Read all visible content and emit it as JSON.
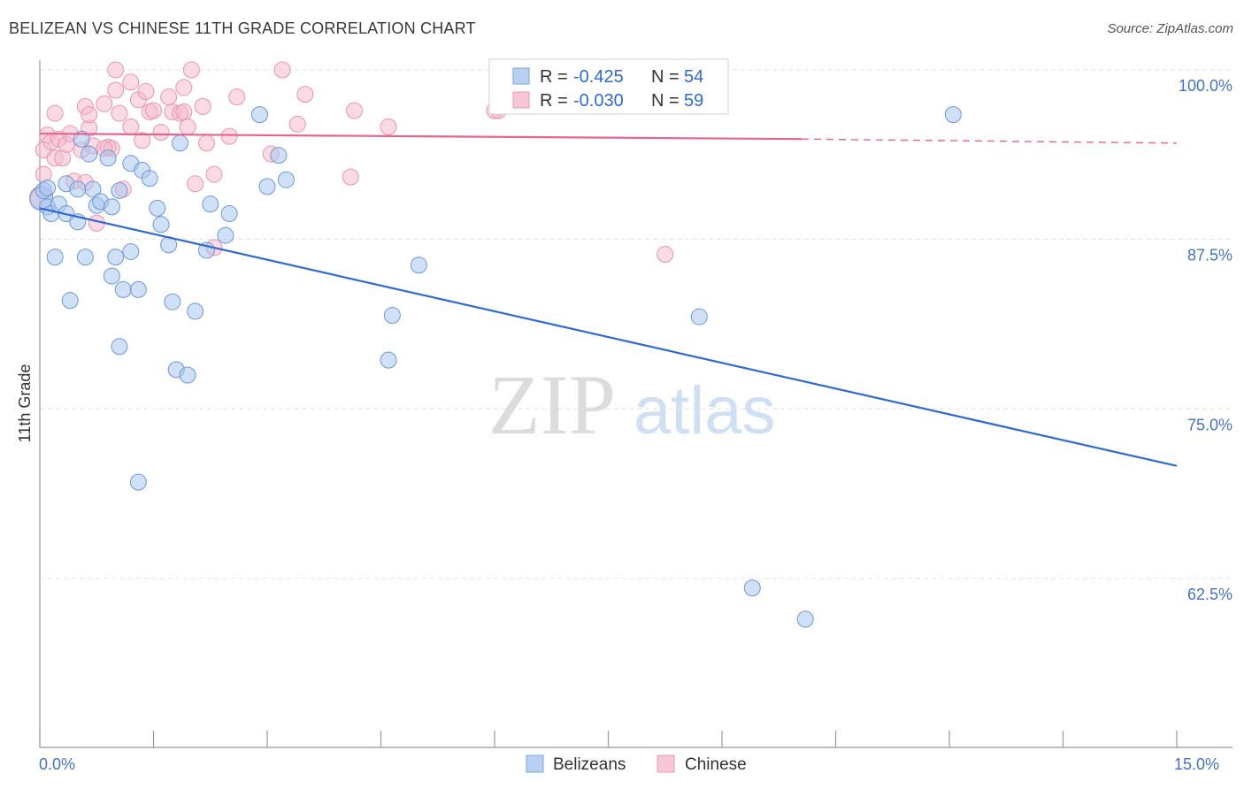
{
  "header": {
    "title": "BELIZEAN VS CHINESE 11TH GRADE CORRELATION CHART",
    "source": "Source: ZipAtlas.com"
  },
  "watermark": {
    "part1": "ZIP",
    "part2": "atlas"
  },
  "legend_top": {
    "rows": [
      {
        "r_label": "R =",
        "r_value": "-0.425",
        "n_label": "N =",
        "n_value": "54",
        "color": "#a9c6ee"
      },
      {
        "r_label": "R =",
        "r_value": "-0.030",
        "n_label": "N =",
        "n_value": "59",
        "color": "#f5b8c9"
      }
    ]
  },
  "legend_bottom": {
    "items": [
      {
        "label": "Belizeans",
        "color": "#a9c6ee"
      },
      {
        "label": "Chinese",
        "color": "#f5b8c9"
      }
    ]
  },
  "chart_data": {
    "type": "scatter",
    "ylabel": "11th Grade",
    "xlim": [
      0,
      15
    ],
    "ylim": [
      50,
      100
    ],
    "x_tick_labels": [
      "0.0%",
      "15.0%"
    ],
    "y_ticks": [
      100,
      87.5,
      75,
      62.5
    ],
    "y_tick_labels": [
      "100.0%",
      "87.5%",
      "75.0%",
      "62.5%"
    ],
    "grid": true,
    "colors": {
      "belizeans": "#2f6ad0",
      "chinese": "#e8638e",
      "belizeans_fill": "#a9c6ee",
      "chinese_fill": "#f5b8c9"
    },
    "series": [
      {
        "name": "Belizeans",
        "trend": {
          "x": [
            0,
            15
          ],
          "y": [
            89.8,
            70.8
          ],
          "dashed_from": null
        },
        "points": [
          [
            0.02,
            90.5
          ],
          [
            0.05,
            91.1
          ],
          [
            0.1,
            91.3
          ],
          [
            0.1,
            89.9
          ],
          [
            0.15,
            89.4
          ],
          [
            0.25,
            90.1
          ],
          [
            0.35,
            91.6
          ],
          [
            0.35,
            89.4
          ],
          [
            0.5,
            91.2
          ],
          [
            0.5,
            88.8
          ],
          [
            0.55,
            94.9
          ],
          [
            0.65,
            93.8
          ],
          [
            0.7,
            91.2
          ],
          [
            0.75,
            90.0
          ],
          [
            0.8,
            90.3
          ],
          [
            0.9,
            93.5
          ],
          [
            0.95,
            89.9
          ],
          [
            1.05,
            91.1
          ],
          [
            1.2,
            93.1
          ],
          [
            1.35,
            92.6
          ],
          [
            1.45,
            92.0
          ],
          [
            1.55,
            89.8
          ],
          [
            1.6,
            88.6
          ],
          [
            1.7,
            87.1
          ],
          [
            1.85,
            94.6
          ],
          [
            2.25,
            90.1
          ],
          [
            2.5,
            89.4
          ],
          [
            2.45,
            87.8
          ],
          [
            2.2,
            86.7
          ],
          [
            2.9,
            96.7
          ],
          [
            3.0,
            91.4
          ],
          [
            3.15,
            93.7
          ],
          [
            3.25,
            91.9
          ],
          [
            0.2,
            86.2
          ],
          [
            0.6,
            86.2
          ],
          [
            1.0,
            86.2
          ],
          [
            1.2,
            86.6
          ],
          [
            0.4,
            83.0
          ],
          [
            0.95,
            84.8
          ],
          [
            1.1,
            83.8
          ],
          [
            1.3,
            83.8
          ],
          [
            1.75,
            82.9
          ],
          [
            2.05,
            82.2
          ],
          [
            1.05,
            79.6
          ],
          [
            1.8,
            77.9
          ],
          [
            1.95,
            77.5
          ],
          [
            5.0,
            85.6
          ],
          [
            4.65,
            81.9
          ],
          [
            4.6,
            78.6
          ],
          [
            8.7,
            81.8
          ],
          [
            12.05,
            96.7
          ],
          [
            9.4,
            61.8
          ],
          [
            10.1,
            59.5
          ],
          [
            1.3,
            69.6
          ]
        ]
      },
      {
        "name": "Chinese",
        "trend": {
          "x": [
            0,
            10.05,
            15
          ],
          "y": [
            95.3,
            94.9,
            94.6
          ],
          "dashed_from": 10.05
        },
        "points": [
          [
            0.02,
            90.6
          ],
          [
            0.05,
            94.1
          ],
          [
            0.1,
            95.2
          ],
          [
            0.15,
            94.7
          ],
          [
            0.2,
            96.8
          ],
          [
            0.2,
            93.5
          ],
          [
            0.25,
            94.9
          ],
          [
            0.3,
            93.5
          ],
          [
            0.35,
            94.5
          ],
          [
            0.4,
            95.3
          ],
          [
            0.45,
            91.8
          ],
          [
            0.55,
            94.1
          ],
          [
            0.6,
            97.3
          ],
          [
            0.65,
            95.7
          ],
          [
            0.65,
            96.7
          ],
          [
            0.7,
            94.4
          ],
          [
            0.75,
            88.7
          ],
          [
            0.85,
            97.5
          ],
          [
            0.9,
            94.3
          ],
          [
            0.95,
            94.2
          ],
          [
            1.0,
            100.0
          ],
          [
            1.0,
            98.5
          ],
          [
            1.05,
            96.8
          ],
          [
            1.1,
            91.2
          ],
          [
            1.2,
            95.8
          ],
          [
            1.2,
            99.1
          ],
          [
            1.3,
            97.8
          ],
          [
            1.35,
            94.8
          ],
          [
            1.4,
            98.4
          ],
          [
            1.45,
            96.9
          ],
          [
            1.5,
            97.0
          ],
          [
            1.6,
            95.4
          ],
          [
            1.7,
            98.0
          ],
          [
            1.75,
            96.9
          ],
          [
            1.85,
            96.8
          ],
          [
            1.9,
            96.9
          ],
          [
            1.9,
            98.7
          ],
          [
            1.95,
            95.8
          ],
          [
            2.0,
            100.0
          ],
          [
            2.05,
            91.6
          ],
          [
            2.15,
            97.3
          ],
          [
            2.2,
            94.6
          ],
          [
            2.3,
            92.3
          ],
          [
            2.5,
            95.1
          ],
          [
            2.6,
            98.0
          ],
          [
            3.05,
            93.8
          ],
          [
            3.2,
            100.0
          ],
          [
            3.4,
            96.0
          ],
          [
            3.5,
            98.2
          ],
          [
            4.1,
            92.1
          ],
          [
            4.15,
            97.0
          ],
          [
            4.6,
            95.8
          ],
          [
            6.0,
            97.0
          ],
          [
            6.05,
            97.0
          ],
          [
            8.25,
            86.4
          ],
          [
            0.05,
            92.3
          ],
          [
            0.6,
            91.7
          ],
          [
            0.85,
            94.2
          ],
          [
            2.3,
            86.9
          ]
        ]
      }
    ]
  }
}
